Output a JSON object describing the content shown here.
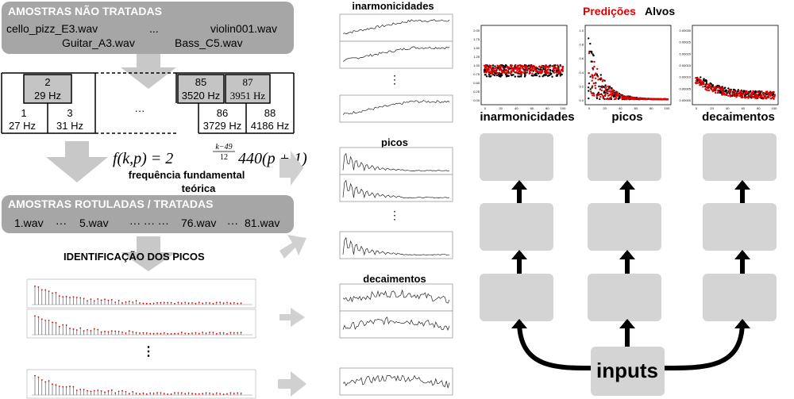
{
  "raw_samples": {
    "title": "AMOSTRAS NÃO TRATADAS",
    "files_row1": [
      "cello_pizz_E3.wav",
      "...",
      "violin001.wav"
    ],
    "files_row2": [
      "Guitar_A3.wav",
      "Bass_C5.wav"
    ]
  },
  "keyboard": {
    "upper_keys": [
      {
        "num": "2",
        "freq": "29 Hz"
      },
      {
        "num": "85",
        "freq": "3520 Hz"
      },
      {
        "num": "87",
        "freq": "3951 Hz"
      }
    ],
    "lower_keys": [
      {
        "num": "1",
        "freq": "27 Hz"
      },
      {
        "num": "3",
        "freq": "31 Hz"
      },
      {
        "num": "86",
        "freq": "3729 Hz"
      },
      {
        "num": "88",
        "freq": "4186 Hz"
      }
    ],
    "ellipsis": "···"
  },
  "formula": {
    "lhs": "f(k,p) = 2",
    "exp_num": "k−49",
    "exp_den": "12",
    "rhs": "440(p + 1)",
    "caption_line1": "frequência fundamental",
    "caption_line2": "teórica"
  },
  "labeled_samples": {
    "title": "AMOSTRAS ROTULADAS / TRATADAS",
    "files": [
      "1.wav",
      "···",
      "5.wav",
      "··· ··· ···",
      "76.wav",
      "···",
      "81.wav"
    ]
  },
  "peaks_section": {
    "title": "IDENTIFICAÇÃO DOS PICOS",
    "vdots": "⋮"
  },
  "middle_column": {
    "inharmonicity_label": "inarmonicidades",
    "peaks_label": "picos",
    "decay_label": "decaimentos",
    "vdots": "⋮"
  },
  "predictions": {
    "legend_pred": "Predições",
    "legend_targets": "Alvos",
    "colors": {
      "pred": "#e00000",
      "target": "#000000"
    },
    "plot1": {
      "title": "inarmonicidades",
      "yticks": [
        "2.00",
        "1.75",
        "1.50",
        "1.25",
        "1.00",
        "0.75",
        "0.50",
        "0.25",
        "0.00"
      ],
      "xticks": [
        "0",
        "20",
        "40",
        "60",
        "80",
        "100"
      ]
    },
    "plot2": {
      "title": "picos",
      "yticks": [
        "1.0",
        "0.8",
        "0.6",
        "0.4",
        "0.2",
        "0.0"
      ],
      "xticks": [
        "0",
        "20",
        "40",
        "60",
        "80",
        "100"
      ]
    },
    "plot3": {
      "title": "decaimentos",
      "yticks": [
        "0.00030",
        "0.00025",
        "0.00020",
        "0.00015",
        "0.00010",
        "0.00005",
        "0.00000"
      ],
      "xticks": [
        "0",
        "20",
        "40",
        "60",
        "80",
        "100"
      ]
    }
  },
  "network": {
    "input_label": "inputs",
    "node_color": "#d4d4d4"
  }
}
